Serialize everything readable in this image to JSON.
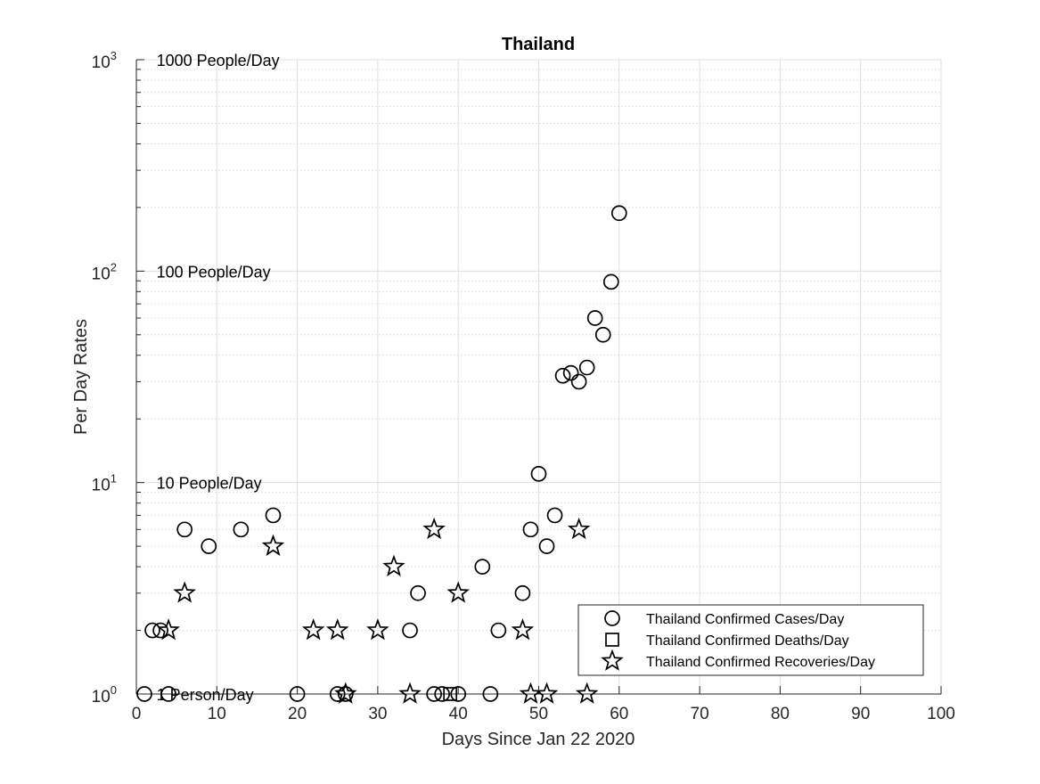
{
  "chart_data": {
    "type": "scatter",
    "title": "Thailand",
    "xlabel": "Days Since Jan 22 2020",
    "ylabel": "Per Day Rates",
    "xlim": [
      0,
      100
    ],
    "ylim": [
      1,
      1000
    ],
    "yscale": "log",
    "grid": "on",
    "minor_grid": "on",
    "legend_position": "bottom-right",
    "xticks": [
      0,
      10,
      20,
      30,
      40,
      50,
      60,
      70,
      80,
      90,
      100
    ],
    "yticks": [
      {
        "value": 1,
        "base": "10",
        "exp": "0"
      },
      {
        "value": 10,
        "base": "10",
        "exp": "1"
      },
      {
        "value": 100,
        "base": "10",
        "exp": "2"
      },
      {
        "value": 1000,
        "base": "10",
        "exp": "3"
      }
    ],
    "annotations": [
      {
        "text": "1 Person/Day",
        "x": 2.5,
        "y": 1
      },
      {
        "text": "10 People/Day",
        "x": 2.5,
        "y": 10
      },
      {
        "text": "100 People/Day",
        "x": 2.5,
        "y": 100
      },
      {
        "text": "1000 People/Day",
        "x": 2.5,
        "y": 1000
      }
    ],
    "series": [
      {
        "name": "Thailand Confirmed Cases/Day",
        "marker": "circle",
        "points": [
          [
            1,
            1
          ],
          [
            2,
            2
          ],
          [
            3,
            2
          ],
          [
            4,
            1
          ],
          [
            6,
            6
          ],
          [
            9,
            5
          ],
          [
            13,
            6
          ],
          [
            17,
            7
          ],
          [
            20,
            1
          ],
          [
            25,
            1
          ],
          [
            26,
            1
          ],
          [
            34,
            2
          ],
          [
            35,
            3
          ],
          [
            37,
            1
          ],
          [
            38,
            1
          ],
          [
            40,
            1
          ],
          [
            43,
            4
          ],
          [
            44,
            1
          ],
          [
            45,
            2
          ],
          [
            48,
            3
          ],
          [
            49,
            6
          ],
          [
            50,
            11
          ],
          [
            51,
            5
          ],
          [
            52,
            7
          ],
          [
            53,
            32
          ],
          [
            54,
            33
          ],
          [
            55,
            30
          ],
          [
            56,
            35
          ],
          [
            57,
            60
          ],
          [
            58,
            50
          ],
          [
            59,
            89
          ],
          [
            60,
            188
          ]
        ]
      },
      {
        "name": "Thailand Confirmed Deaths/Day",
        "marker": "square",
        "points": [
          [
            39,
            1
          ]
        ]
      },
      {
        "name": "Thailand Confirmed Recoveries/Day",
        "marker": "star",
        "points": [
          [
            4,
            2
          ],
          [
            6,
            3
          ],
          [
            17,
            5
          ],
          [
            22,
            2
          ],
          [
            25,
            2
          ],
          [
            26,
            1
          ],
          [
            30,
            2
          ],
          [
            32,
            4
          ],
          [
            34,
            1
          ],
          [
            37,
            6
          ],
          [
            40,
            3
          ],
          [
            48,
            2
          ],
          [
            49,
            1
          ],
          [
            51,
            1
          ],
          [
            55,
            6
          ],
          [
            56,
            1
          ]
        ]
      }
    ]
  }
}
